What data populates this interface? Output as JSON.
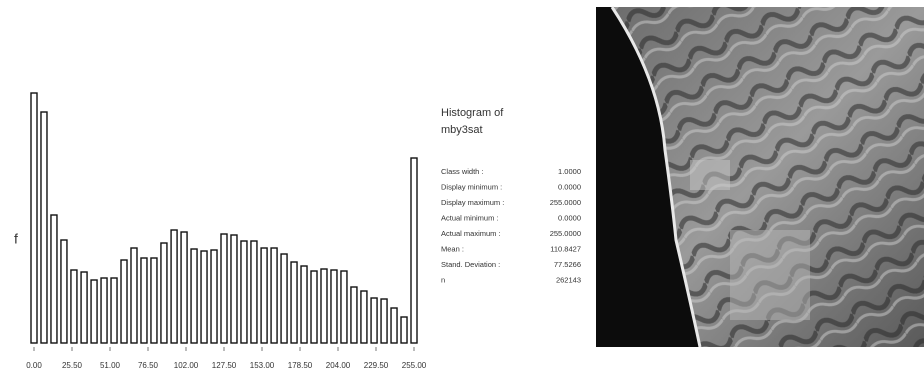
{
  "chart_data": {
    "type": "bar",
    "y_label": "f",
    "x": [
      0,
      6.7,
      13.4,
      20.1,
      26.8,
      33.6,
      40.3,
      47.0,
      53.7,
      60.4,
      67.1,
      73.8,
      80.5,
      87.2,
      94.0,
      100.7,
      107.4,
      114.1,
      120.8,
      127.5,
      134.2,
      140.9,
      147.6,
      154.4,
      161.1,
      167.8,
      174.5,
      181.2,
      187.9,
      194.6,
      201.3,
      208.0,
      214.7,
      221.4,
      228.2,
      234.9,
      241.6,
      248.3,
      255.0
    ],
    "values": [
      250,
      231,
      128,
      103,
      73,
      71,
      63,
      65,
      65,
      83,
      95,
      85,
      85,
      100,
      113,
      111,
      94,
      92,
      93,
      109,
      108,
      102,
      102,
      95,
      95,
      89,
      81,
      77,
      72,
      74,
      73,
      72,
      56,
      52,
      45,
      44,
      35,
      26,
      185
    ],
    "color": "#ffffff",
    "xlim": [
      0,
      255
    ],
    "xticks": [
      {
        "value": 0,
        "label": "0.00"
      },
      {
        "value": 25.5,
        "label": "25.50"
      },
      {
        "value": 51,
        "label": "51.00"
      },
      {
        "value": 76.5,
        "label": "76.50"
      },
      {
        "value": 102,
        "label": "102.00"
      },
      {
        "value": 127.5,
        "label": "127.50"
      },
      {
        "value": 153,
        "label": "153.00"
      },
      {
        "value": 178.5,
        "label": "178.50"
      },
      {
        "value": 204,
        "label": "204.00"
      },
      {
        "value": 229.5,
        "label": "229.50"
      },
      {
        "value": 255,
        "label": "255.00"
      }
    ],
    "ylim": [
      0,
      260
    ]
  },
  "stats": {
    "title": [
      "Histogram of",
      "mby3sat"
    ],
    "rows": [
      [
        "Class width :",
        "1.0000"
      ],
      [
        "Display minimum :",
        "0.0000"
      ],
      [
        "Display maximum :",
        "255.0000"
      ],
      [
        "Actual minimum :",
        "0.0000"
      ],
      [
        "Actual maximum :",
        "255.0000"
      ],
      [
        "Mean :",
        "110.8427"
      ],
      [
        "Stand. Deviation :",
        "77.5266"
      ],
      [
        "n",
        "262143"
      ]
    ]
  }
}
